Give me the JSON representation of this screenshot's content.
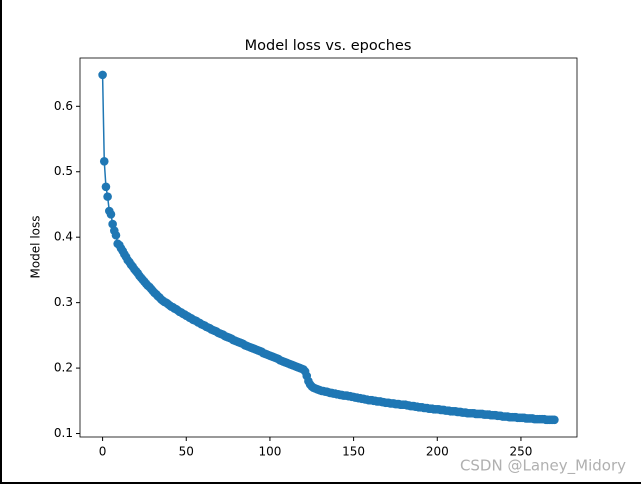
{
  "chart_data": {
    "type": "line",
    "title": "Model loss vs. epoches",
    "ylabel": "Model loss",
    "watermark": "CSDN @Laney_Midory",
    "x": [
      0,
      1,
      2,
      3,
      4,
      5,
      6,
      7,
      8,
      9,
      10,
      11,
      12,
      13,
      14,
      15,
      16,
      17,
      18,
      19,
      20,
      21,
      22,
      23,
      24,
      25,
      26,
      27,
      28,
      29,
      30,
      31,
      32,
      33,
      34,
      35,
      36,
      37,
      38,
      39,
      40,
      41,
      42,
      43,
      44,
      45,
      46,
      47,
      48,
      49,
      50,
      51,
      52,
      53,
      54,
      55,
      56,
      57,
      58,
      59,
      60,
      61,
      62,
      63,
      64,
      65,
      66,
      67,
      68,
      69,
      70,
      71,
      72,
      73,
      74,
      75,
      76,
      77,
      78,
      79,
      80,
      81,
      82,
      83,
      84,
      85,
      86,
      87,
      88,
      89,
      90,
      91,
      92,
      93,
      94,
      95,
      96,
      97,
      98,
      99,
      100,
      101,
      102,
      103,
      104,
      105,
      106,
      107,
      108,
      109,
      110,
      111,
      112,
      113,
      114,
      115,
      116,
      117,
      118,
      119,
      120,
      121,
      122,
      123,
      124,
      125,
      126,
      127,
      128,
      129,
      130,
      131,
      132,
      133,
      134,
      135,
      136,
      137,
      138,
      139,
      140,
      141,
      142,
      143,
      144,
      145,
      146,
      147,
      148,
      149,
      150,
      151,
      152,
      153,
      154,
      155,
      156,
      157,
      158,
      159,
      160,
      161,
      162,
      163,
      164,
      165,
      166,
      167,
      168,
      169,
      170,
      171,
      172,
      173,
      174,
      175,
      176,
      177,
      178,
      179,
      180,
      181,
      182,
      183,
      184,
      185,
      186,
      187,
      188,
      189,
      190,
      191,
      192,
      193,
      194,
      195,
      196,
      197,
      198,
      199,
      200,
      201,
      202,
      203,
      204,
      205,
      206,
      207,
      208,
      209,
      210,
      211,
      212,
      213,
      214,
      215,
      216,
      217,
      218,
      219,
      220,
      221,
      222,
      223,
      224,
      225,
      226,
      227,
      228,
      229,
      230,
      231,
      232,
      233,
      234,
      235,
      236,
      237,
      238,
      239,
      240,
      241,
      242,
      243,
      244,
      245,
      246,
      247,
      248,
      249,
      250,
      251,
      252,
      253,
      254,
      255,
      256,
      257,
      258,
      259,
      260,
      261,
      262,
      263,
      264,
      265,
      266,
      267,
      268,
      269,
      270
    ],
    "series": [
      {
        "name": "loss",
        "color": "#1f77b4",
        "values": [
          0.648,
          0.516,
          0.477,
          0.462,
          0.44,
          0.435,
          0.42,
          0.41,
          0.403,
          0.39,
          0.388,
          0.383,
          0.379,
          0.374,
          0.37,
          0.365,
          0.362,
          0.358,
          0.355,
          0.351,
          0.348,
          0.345,
          0.341,
          0.338,
          0.335,
          0.332,
          0.329,
          0.326,
          0.324,
          0.321,
          0.318,
          0.315,
          0.313,
          0.31,
          0.308,
          0.305,
          0.303,
          0.301,
          0.3,
          0.298,
          0.296,
          0.294,
          0.293,
          0.291,
          0.29,
          0.288,
          0.286,
          0.285,
          0.283,
          0.282,
          0.28,
          0.279,
          0.277,
          0.276,
          0.274,
          0.273,
          0.272,
          0.27,
          0.269,
          0.267,
          0.266,
          0.265,
          0.263,
          0.262,
          0.261,
          0.259,
          0.258,
          0.257,
          0.256,
          0.254,
          0.253,
          0.252,
          0.251,
          0.249,
          0.248,
          0.247,
          0.246,
          0.245,
          0.243,
          0.242,
          0.241,
          0.24,
          0.239,
          0.238,
          0.237,
          0.235,
          0.234,
          0.233,
          0.232,
          0.231,
          0.23,
          0.229,
          0.228,
          0.227,
          0.226,
          0.225,
          0.223,
          0.222,
          0.221,
          0.22,
          0.219,
          0.218,
          0.217,
          0.216,
          0.215,
          0.214,
          0.212,
          0.211,
          0.21,
          0.209,
          0.208,
          0.207,
          0.206,
          0.205,
          0.204,
          0.203,
          0.202,
          0.201,
          0.2,
          0.199,
          0.198,
          0.195,
          0.188,
          0.18,
          0.175,
          0.172,
          0.17,
          0.169,
          0.168,
          0.167,
          0.166,
          0.165,
          0.165,
          0.164,
          0.164,
          0.163,
          0.162,
          0.162,
          0.161,
          0.161,
          0.16,
          0.16,
          0.159,
          0.159,
          0.158,
          0.158,
          0.158,
          0.157,
          0.157,
          0.156,
          0.156,
          0.155,
          0.155,
          0.154,
          0.154,
          0.153,
          0.153,
          0.152,
          0.152,
          0.151,
          0.151,
          0.151,
          0.15,
          0.15,
          0.149,
          0.149,
          0.149,
          0.148,
          0.148,
          0.147,
          0.147,
          0.147,
          0.146,
          0.146,
          0.146,
          0.145,
          0.145,
          0.145,
          0.144,
          0.144,
          0.144,
          0.144,
          0.143,
          0.143,
          0.142,
          0.142,
          0.142,
          0.141,
          0.141,
          0.14,
          0.14,
          0.14,
          0.139,
          0.139,
          0.139,
          0.138,
          0.138,
          0.138,
          0.137,
          0.137,
          0.137,
          0.137,
          0.136,
          0.136,
          0.136,
          0.135,
          0.135,
          0.135,
          0.134,
          0.134,
          0.134,
          0.134,
          0.133,
          0.133,
          0.133,
          0.132,
          0.132,
          0.132,
          0.131,
          0.131,
          0.131,
          0.131,
          0.131,
          0.13,
          0.13,
          0.13,
          0.13,
          0.13,
          0.129,
          0.129,
          0.129,
          0.129,
          0.128,
          0.128,
          0.128,
          0.128,
          0.127,
          0.127,
          0.127,
          0.126,
          0.126,
          0.126,
          0.126,
          0.125,
          0.125,
          0.125,
          0.125,
          0.125,
          0.124,
          0.124,
          0.124,
          0.124,
          0.124,
          0.123,
          0.123,
          0.123,
          0.123,
          0.123,
          0.122,
          0.122,
          0.122,
          0.122,
          0.122,
          0.122,
          0.122,
          0.121,
          0.121,
          0.121,
          0.121,
          0.121,
          0.121
        ]
      }
    ],
    "xlim": [
      -13.5,
      283.5
    ],
    "ylim": [
      0.0947,
      0.6738
    ],
    "xticks": [
      0,
      50,
      100,
      150,
      200,
      250
    ],
    "yticks": [
      0.1,
      0.2,
      0.3,
      0.4,
      0.5,
      0.6
    ],
    "grid": false,
    "marker": "circle"
  }
}
